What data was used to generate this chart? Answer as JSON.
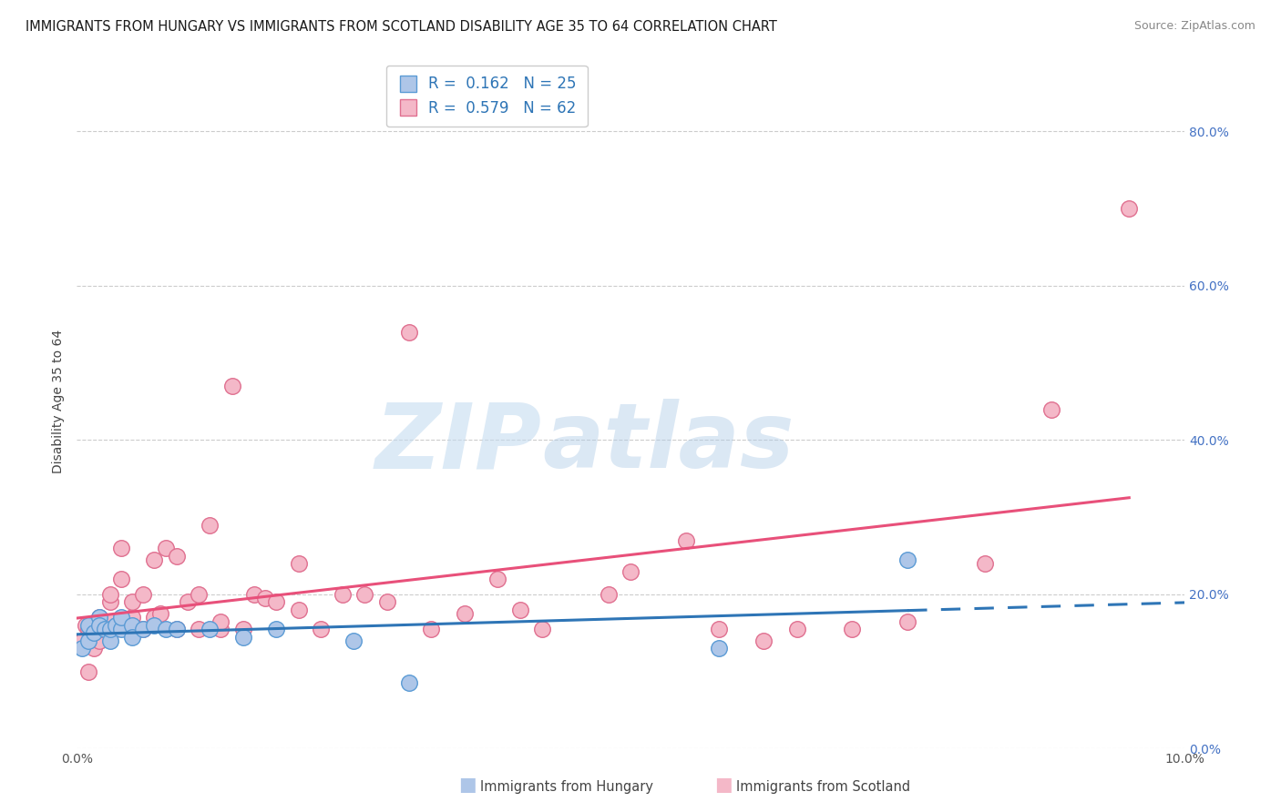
{
  "title": "IMMIGRANTS FROM HUNGARY VS IMMIGRANTS FROM SCOTLAND DISABILITY AGE 35 TO 64 CORRELATION CHART",
  "source": "Source: ZipAtlas.com",
  "ylabel": "Disability Age 35 to 64",
  "xlim": [
    0.0,
    0.1
  ],
  "ylim": [
    0.0,
    0.9
  ],
  "xticks": [
    0.0,
    0.1
  ],
  "yticks": [
    0.0,
    0.2,
    0.4,
    0.6,
    0.8
  ],
  "xtick_labels": [
    "0.0%",
    "10.0%"
  ],
  "ytick_labels_right": [
    "0.0%",
    "20.0%",
    "40.0%",
    "60.0%",
    "80.0%"
  ],
  "hungary_color": "#aec6e8",
  "hungary_edge_color": "#5b9bd5",
  "scotland_color": "#f4b8c8",
  "scotland_edge_color": "#e07090",
  "hungary_line_color": "#2e75b6",
  "scotland_line_color": "#e8507a",
  "watermark_zip": "ZIP",
  "watermark_atlas": "atlas",
  "legend_hungary_label": "Immigrants from Hungary",
  "legend_scotland_label": "Immigrants from Scotland",
  "hungary_R": "0.162",
  "hungary_N": "25",
  "scotland_R": "0.579",
  "scotland_N": "62",
  "hungary_x": [
    0.0005,
    0.001,
    0.001,
    0.0015,
    0.002,
    0.002,
    0.0025,
    0.003,
    0.003,
    0.0035,
    0.004,
    0.004,
    0.005,
    0.005,
    0.006,
    0.007,
    0.008,
    0.009,
    0.012,
    0.015,
    0.018,
    0.025,
    0.03,
    0.058,
    0.075
  ],
  "hungary_y": [
    0.13,
    0.14,
    0.16,
    0.15,
    0.17,
    0.16,
    0.155,
    0.14,
    0.155,
    0.16,
    0.155,
    0.17,
    0.16,
    0.145,
    0.155,
    0.16,
    0.155,
    0.155,
    0.155,
    0.145,
    0.155,
    0.14,
    0.085,
    0.13,
    0.245
  ],
  "scotland_x": [
    0.0005,
    0.0008,
    0.001,
    0.001,
    0.0012,
    0.0015,
    0.002,
    0.002,
    0.0022,
    0.0025,
    0.003,
    0.003,
    0.003,
    0.0035,
    0.004,
    0.004,
    0.0045,
    0.005,
    0.005,
    0.0055,
    0.006,
    0.006,
    0.007,
    0.007,
    0.0075,
    0.008,
    0.009,
    0.009,
    0.01,
    0.011,
    0.011,
    0.012,
    0.013,
    0.013,
    0.014,
    0.015,
    0.016,
    0.017,
    0.018,
    0.02,
    0.02,
    0.022,
    0.024,
    0.026,
    0.028,
    0.03,
    0.032,
    0.035,
    0.038,
    0.04,
    0.042,
    0.048,
    0.05,
    0.055,
    0.058,
    0.062,
    0.065,
    0.07,
    0.075,
    0.082,
    0.088,
    0.095
  ],
  "scotland_y": [
    0.14,
    0.16,
    0.1,
    0.155,
    0.155,
    0.13,
    0.14,
    0.17,
    0.155,
    0.155,
    0.19,
    0.165,
    0.2,
    0.155,
    0.26,
    0.22,
    0.16,
    0.17,
    0.19,
    0.155,
    0.2,
    0.155,
    0.245,
    0.17,
    0.175,
    0.26,
    0.25,
    0.155,
    0.19,
    0.155,
    0.2,
    0.29,
    0.155,
    0.165,
    0.47,
    0.155,
    0.2,
    0.195,
    0.19,
    0.24,
    0.18,
    0.155,
    0.2,
    0.2,
    0.19,
    0.54,
    0.155,
    0.175,
    0.22,
    0.18,
    0.155,
    0.2,
    0.23,
    0.27,
    0.155,
    0.14,
    0.155,
    0.155,
    0.165,
    0.24,
    0.44,
    0.7
  ]
}
